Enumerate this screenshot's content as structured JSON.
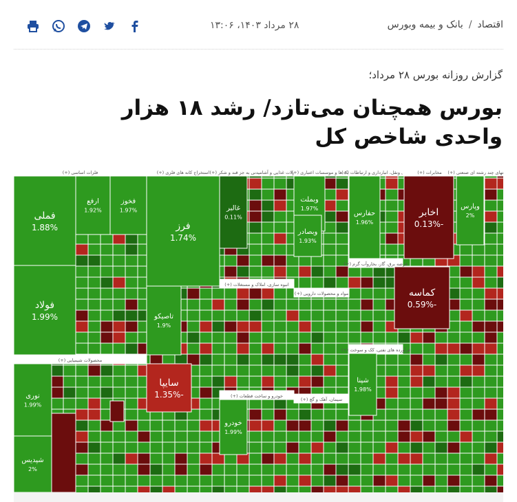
{
  "header": {
    "breadcrumb": [
      "اقتصاد",
      "بانک و بیمه وبورس"
    ],
    "separator": "/",
    "date": "۲۸ مرداد ۱۴۰۳، ۱۳:۰۶"
  },
  "share_icons": [
    "print-icon",
    "whatsapp-icon",
    "telegram-icon",
    "twitter-icon",
    "facebook-icon"
  ],
  "article": {
    "kicker": "گزارش روزانه بورس ۲۸ مرداد؛",
    "title": "بورس همچنان می‌تازد/ رشد ۱۸ هزار واحدی شاخص کل"
  },
  "colors": {
    "accent": "#1f4fa0",
    "heatmap_green": "#2e9a1f",
    "heatmap_dark_green": "#1d6b12",
    "heatmap_dark_red": "#6b0d0d",
    "heatmap_red": "#b3261e"
  },
  "heatmap": {
    "sector_headers": [
      "فلزات اساسی (+)",
      "استخراج کانه های فلزی (+)",
      "محصولات شیمیایی (+)",
      "محصولات غذایی و آشامیدنی به جز قند و شکر (+)",
      "بانک ها و موسسات اعتباری (+)",
      "حمل ونقل، انبارداری و ارتباطات (+)",
      "مخابرات (+)",
      "شرکتهای چند رشته ای صنعتی (+)",
      "انبوه سازی، املاک و مستغلات (+)",
      "مواد و محصولات دارویی (+)",
      "عرضه برق، گاز، بخاروآب گرم (+)",
      "فرآورده های نفتی، کک و سوخت (+)",
      "خودرو و ساخت قطعات (+)",
      "سیمان، آهک و گچ (+)"
    ],
    "tiles": [
      {
        "symbol": "فملی",
        "change": "1.88%"
      },
      {
        "symbol": "فولاد",
        "change": "1.99%"
      },
      {
        "symbol": "ارفع",
        "change": "1.92%"
      },
      {
        "symbol": "فخوز",
        "change": "1.97%"
      },
      {
        "symbol": "فرز",
        "change": "1.74%"
      },
      {
        "symbol": "تاصیکو",
        "change": "1.9%"
      },
      {
        "symbol": "غالبر",
        "change": "0.11%"
      },
      {
        "symbol": "وبملت",
        "change": "1.97%"
      },
      {
        "symbol": "حفارس",
        "change": "1.96%"
      },
      {
        "symbol": "اخابر",
        "change": "-0.13%"
      },
      {
        "symbol": "وپارس",
        "change": "2%"
      },
      {
        "symbol": "کماسه",
        "change": "-0.59%"
      },
      {
        "symbol": "نوری",
        "change": "1.99%"
      },
      {
        "symbol": "شپدیس",
        "change": "2%"
      },
      {
        "symbol": "سایپا",
        "change": "-1.35%"
      },
      {
        "symbol": "خودرو",
        "change": "1.99%"
      },
      {
        "symbol": "شپنا",
        "change": "1.98%"
      },
      {
        "symbol": "وبصادر",
        "change": "1.93%"
      }
    ]
  }
}
